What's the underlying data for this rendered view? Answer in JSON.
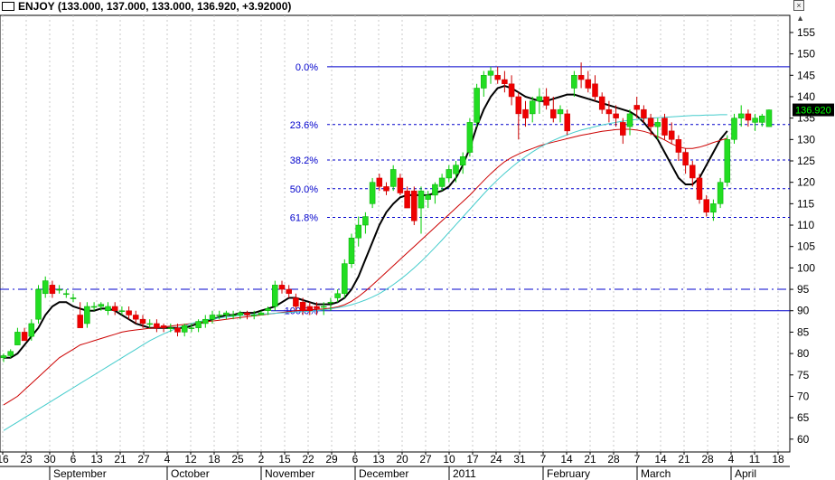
{
  "header": {
    "symbol": "ENJOY",
    "ohlc": "(133.000, 137.000, 133.000, 136.920, +3.92000)",
    "close_glyph": "×",
    "scroll_glyph": "▲"
  },
  "chart_data": {
    "type": "candlestick",
    "symbol": "ENJOY",
    "last_price": 136.92,
    "last_price_label": "136.920",
    "ylim": [
      57,
      159
    ],
    "y_ticks": [
      60,
      65,
      70,
      75,
      80,
      85,
      90,
      95,
      100,
      105,
      110,
      115,
      120,
      125,
      130,
      135,
      140,
      145,
      150,
      155
    ],
    "x_day_labels": [
      "16",
      "23",
      "30",
      "6",
      "13",
      "21",
      "27",
      "4",
      "12",
      "18",
      "25",
      "2",
      "15",
      "22",
      "29",
      "6",
      "13",
      "20",
      "27",
      "10",
      "17",
      "24",
      "31",
      "7",
      "14",
      "21",
      "28",
      "7",
      "14",
      "21",
      "28",
      "4",
      "11",
      "18"
    ],
    "x_month_labels": [
      {
        "label": "September",
        "after_day": 2
      },
      {
        "label": "October",
        "after_day": 7
      },
      {
        "label": "November",
        "after_day": 11
      },
      {
        "label": "December",
        "after_day": 15
      },
      {
        "label": "2011",
        "after_day": 19
      },
      {
        "label": "February",
        "after_day": 23
      },
      {
        "label": "March",
        "after_day": 27
      },
      {
        "label": "April",
        "after_day": 31
      }
    ],
    "fibonacci": {
      "high": 147,
      "low": 90,
      "levels": [
        {
          "label": "0.0%",
          "value": 147,
          "style": "solid"
        },
        {
          "label": "23.6%",
          "value": 133.5,
          "style": "dashed"
        },
        {
          "label": "38.2%",
          "value": 125.2,
          "style": "dashed"
        },
        {
          "label": "50.0%",
          "value": 118.5,
          "style": "dashed"
        },
        {
          "label": "61.8%",
          "value": 111.8,
          "style": "dashed"
        },
        {
          "label": "100.0%",
          "value": 90,
          "style": "solid"
        }
      ]
    },
    "horizontal_lines": [
      {
        "value": 95,
        "style": "dashdot",
        "color": "#0000cc"
      }
    ],
    "candles": [
      [
        79,
        80,
        78,
        79.5
      ],
      [
        79.5,
        81,
        79,
        80.5
      ],
      [
        82,
        86,
        82,
        85
      ],
      [
        85,
        86,
        83,
        83
      ],
      [
        84,
        88,
        83,
        87
      ],
      [
        88,
        96,
        87,
        95
      ],
      [
        94,
        98,
        93,
        97
      ],
      [
        96,
        97,
        93,
        94
      ],
      [
        95,
        96,
        94,
        95
      ],
      [
        94,
        95,
        93,
        94
      ],
      [
        93,
        94,
        92,
        93
      ],
      [
        89,
        92,
        86,
        86
      ],
      [
        87,
        92,
        86,
        91
      ],
      [
        91,
        92,
        90,
        91
      ],
      [
        91,
        92,
        90,
        91.5
      ],
      [
        90,
        92,
        89,
        91
      ],
      [
        91,
        92,
        89,
        90
      ],
      [
        90,
        91,
        89,
        90
      ],
      [
        90,
        91,
        88,
        89
      ],
      [
        89,
        90,
        87,
        88
      ],
      [
        88,
        89,
        86,
        87
      ],
      [
        87,
        88,
        86,
        87
      ],
      [
        87,
        88,
        85,
        86
      ],
      [
        86.5,
        87,
        85,
        86
      ],
      [
        86,
        87,
        85,
        86
      ],
      [
        86,
        87,
        84,
        85
      ],
      [
        85,
        87,
        84,
        86.5
      ],
      [
        86,
        87,
        85,
        86
      ],
      [
        86,
        88,
        85,
        87.5
      ],
      [
        87,
        89,
        86,
        88
      ],
      [
        88,
        90,
        87,
        89
      ],
      [
        89,
        90,
        88,
        89
      ],
      [
        89,
        90,
        88,
        89.5
      ],
      [
        89,
        90,
        88,
        89
      ],
      [
        89,
        90,
        88,
        89.5
      ],
      [
        89.5,
        90,
        88,
        89
      ],
      [
        89,
        90,
        88,
        89
      ],
      [
        89,
        90,
        89,
        89.5
      ],
      [
        90,
        91,
        89,
        90.5
      ],
      [
        91,
        97,
        90,
        96
      ],
      [
        96,
        97,
        94,
        95
      ],
      [
        95,
        96,
        93,
        94
      ],
      [
        93,
        94,
        90,
        91
      ],
      [
        92,
        93,
        89,
        90
      ],
      [
        91,
        92,
        89,
        90
      ],
      [
        91,
        92,
        89,
        90.5
      ],
      [
        91,
        92,
        89,
        91
      ],
      [
        92,
        93,
        90,
        92
      ],
      [
        93,
        95,
        92,
        94
      ],
      [
        94,
        102,
        93,
        101
      ],
      [
        101,
        108,
        100,
        107
      ],
      [
        107,
        112,
        105,
        110
      ],
      [
        110,
        113,
        108,
        112
      ],
      [
        115,
        121,
        114,
        120
      ],
      [
        121,
        122,
        118,
        119
      ],
      [
        119,
        120,
        117,
        118
      ],
      [
        119,
        124,
        118,
        123
      ],
      [
        121,
        122,
        117,
        117.5
      ],
      [
        118,
        119,
        114,
        114
      ],
      [
        118,
        119,
        110,
        111
      ],
      [
        114,
        119,
        108,
        118
      ],
      [
        116,
        118,
        114,
        117
      ],
      [
        117,
        120,
        115,
        119.5
      ],
      [
        119,
        122,
        118,
        121
      ],
      [
        121,
        124,
        120,
        123
      ],
      [
        122,
        125,
        120,
        124
      ],
      [
        124,
        127,
        122,
        126
      ],
      [
        127,
        135,
        126,
        134
      ],
      [
        134,
        143,
        133,
        142
      ],
      [
        142,
        146,
        140,
        145
      ],
      [
        145,
        147,
        143,
        146
      ],
      [
        145,
        147,
        143,
        144
      ],
      [
        144,
        146,
        141,
        143
      ],
      [
        143,
        145,
        138,
        140
      ],
      [
        140,
        141,
        130,
        136
      ],
      [
        137,
        139,
        133,
        135
      ],
      [
        136,
        140,
        134,
        139
      ],
      [
        139,
        142,
        136,
        140
      ],
      [
        140,
        142,
        137,
        138
      ],
      [
        137,
        140,
        134,
        135
      ],
      [
        136,
        138,
        134,
        137
      ],
      [
        136,
        137,
        131,
        132
      ],
      [
        142,
        146,
        140,
        145
      ],
      [
        145,
        148,
        142,
        144
      ],
      [
        144,
        146,
        141,
        142
      ],
      [
        143,
        145,
        139,
        140
      ],
      [
        140,
        141,
        136,
        137
      ],
      [
        137,
        139,
        134,
        136
      ],
      [
        136,
        138,
        133,
        135
      ],
      [
        134,
        135,
        129,
        131
      ],
      [
        133,
        137,
        131,
        136
      ],
      [
        138,
        140,
        135,
        137
      ],
      [
        137,
        138,
        134,
        135
      ],
      [
        135,
        136,
        131,
        133
      ],
      [
        133,
        135,
        130,
        134
      ],
      [
        135,
        136,
        130,
        131
      ],
      [
        132,
        134,
        129,
        130
      ],
      [
        130,
        131,
        125,
        127
      ],
      [
        127,
        128,
        122,
        124
      ],
      [
        124,
        125,
        119,
        121
      ],
      [
        121,
        122,
        115,
        116
      ],
      [
        116,
        117,
        112,
        113
      ],
      [
        113,
        116,
        111,
        115
      ],
      [
        115,
        121,
        114,
        120
      ],
      [
        120,
        131,
        119,
        130
      ],
      [
        130,
        136,
        129,
        135
      ],
      [
        135,
        138,
        133,
        136
      ],
      [
        136,
        137,
        133,
        134.5
      ],
      [
        134,
        136,
        132,
        135
      ],
      [
        134,
        136,
        133,
        135.5
      ],
      [
        133,
        137,
        133,
        136.92
      ]
    ],
    "series": [
      {
        "style": "ma-fast",
        "color": "#000000",
        "values": [
          79,
          79,
          80,
          82,
          84,
          86,
          89,
          91,
          92,
          92,
          91,
          90.5,
          90,
          90,
          90.5,
          90.5,
          90,
          89,
          88,
          87,
          86.5,
          86,
          86,
          86,
          86,
          86,
          86,
          86.5,
          87,
          87.5,
          88,
          88.5,
          89,
          89,
          89.5,
          89.5,
          89.5,
          90,
          90.5,
          91,
          92,
          93,
          93,
          92.5,
          92,
          91.5,
          91.5,
          91.5,
          92,
          93,
          95,
          98,
          102,
          106,
          110,
          113,
          115,
          116.5,
          117,
          117,
          117,
          117,
          117.5,
          118,
          119,
          121,
          124,
          128,
          133,
          137,
          140,
          142,
          142.5,
          142,
          141,
          140,
          139.5,
          139,
          139,
          139.5,
          140,
          140.5,
          140.5,
          140,
          139.5,
          139,
          138.5,
          138,
          137.5,
          137,
          136.5,
          135.5,
          134,
          132,
          130,
          127,
          124,
          121,
          119.5,
          119.5,
          121,
          124,
          127,
          130,
          132
        ]
      },
      {
        "style": "ma-mid",
        "color": "#cc0000",
        "values": [
          68,
          69,
          70,
          71.5,
          73,
          74.5,
          76,
          77.5,
          79,
          80,
          81,
          82,
          82.5,
          83,
          83.5,
          84,
          84.5,
          85,
          85.3,
          85.5,
          85.7,
          85.9,
          86,
          86.2,
          86.4,
          86.6,
          86.8,
          87,
          87.2,
          87.4,
          87.6,
          87.8,
          88,
          88.2,
          88.4,
          88.6,
          88.8,
          89,
          89.2,
          89.4,
          89.6,
          89.8,
          90,
          90.1,
          90.2,
          90.3,
          90.4,
          90.6,
          90.9,
          91.4,
          92.2,
          93.3,
          94.6,
          96,
          97.5,
          99,
          100.5,
          102,
          103.5,
          105,
          106.5,
          108,
          109.5,
          111,
          112.5,
          114,
          115.5,
          117,
          118.7,
          120.4,
          122,
          123.5,
          124.8,
          125.8,
          126.6,
          127.3,
          127.9,
          128.5,
          129,
          129.4,
          129.8,
          130.2,
          130.6,
          131,
          131.3,
          131.6,
          131.9,
          132.1,
          132.3,
          132.4,
          132.4,
          132.2,
          131.9,
          131.4,
          130.7,
          129.9,
          129,
          128.3,
          127.9,
          127.9,
          128.2,
          128.7,
          129.3,
          129.8,
          130.3
        ]
      },
      {
        "style": "ma-slow",
        "color": "#44cccc",
        "values": [
          62,
          63,
          64,
          65,
          66,
          67,
          68,
          69,
          70,
          71,
          72,
          73,
          74,
          75,
          76,
          77,
          78,
          79,
          80,
          81,
          82,
          83,
          83.8,
          84.6,
          85.3,
          86,
          86.5,
          87,
          87.4,
          87.8,
          88.1,
          88.3,
          88.5,
          88.7,
          88.9,
          89,
          89.1,
          89.2,
          89.3,
          89.4,
          89.5,
          89.6,
          89.7,
          89.8,
          89.9,
          90,
          90.2,
          90.4,
          90.7,
          91,
          91.4,
          91.9,
          92.5,
          93.2,
          94,
          95,
          96.1,
          97.3,
          98.6,
          100,
          101.5,
          103.1,
          104.8,
          106.5,
          108.3,
          110.1,
          111.9,
          113.7,
          115.5,
          117.3,
          119,
          120.6,
          122.1,
          123.5,
          124.8,
          126,
          127.1,
          128.1,
          129,
          129.8,
          130.5,
          131.1,
          131.7,
          132.2,
          132.6,
          133,
          133.4,
          133.7,
          134,
          134.3,
          134.5,
          134.7,
          134.9,
          135,
          135.1,
          135.2,
          135.3,
          135.4,
          135.5,
          135.6,
          135.6,
          135.7,
          135.7,
          135.8,
          135.8
        ]
      }
    ]
  }
}
